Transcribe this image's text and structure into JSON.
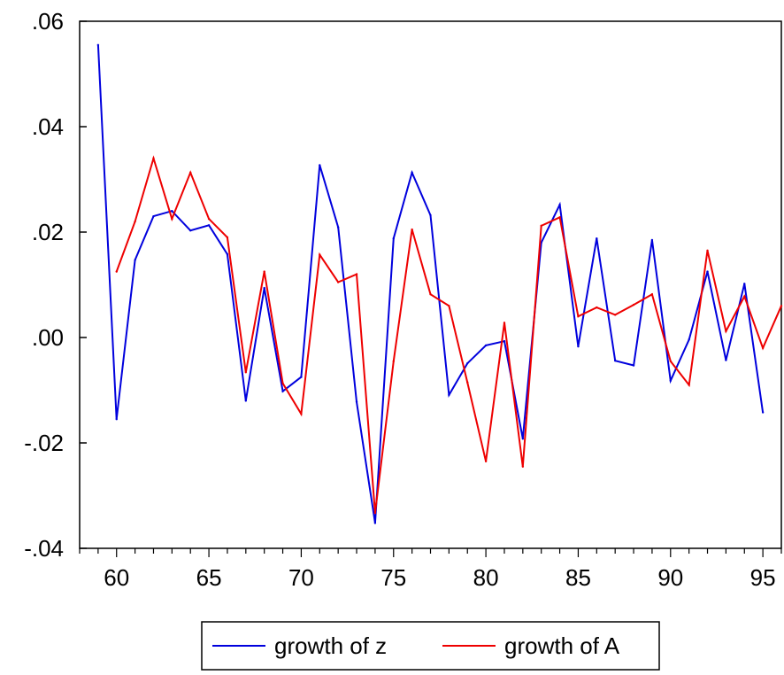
{
  "chart_data": {
    "type": "line",
    "title": "",
    "xlabel": "",
    "ylabel": "",
    "xlim": [
      58,
      96
    ],
    "ylim": [
      -0.04,
      0.06
    ],
    "x_ticks": [
      60,
      65,
      70,
      75,
      80,
      85,
      90,
      95
    ],
    "x_tick_labels": [
      "60",
      "65",
      "70",
      "75",
      "80",
      "85",
      "90",
      "95"
    ],
    "y_ticks": [
      -0.04,
      -0.02,
      0.0,
      0.02,
      0.04,
      0.06
    ],
    "y_tick_labels": [
      "-.04",
      "-.02",
      ".00",
      ".02",
      ".04",
      ".06"
    ],
    "grid": false,
    "legend_position": "bottom-center",
    "series": [
      {
        "name": "growth of z",
        "color": "#0000dd",
        "x": [
          59,
          60,
          61,
          62,
          63,
          64,
          65,
          66,
          67,
          68,
          69,
          70,
          71,
          72,
          73,
          74,
          75,
          76,
          77,
          78,
          79,
          80,
          81,
          82,
          83,
          84,
          85,
          86,
          87,
          88,
          89,
          90,
          91,
          92,
          93,
          94,
          95
        ],
        "values": [
          0.0555,
          -0.0155,
          0.0147,
          0.023,
          0.024,
          0.0203,
          0.0213,
          0.0158,
          -0.012,
          0.0094,
          -0.0102,
          -0.0075,
          0.0327,
          0.0209,
          -0.0122,
          -0.0352,
          0.0188,
          0.0313,
          0.0232,
          -0.0109,
          -0.0049,
          -0.0015,
          -0.0007,
          -0.0192,
          0.018,
          0.0252,
          -0.0017,
          0.0188,
          -0.0044,
          -0.0053,
          0.0185,
          -0.0082,
          -0.0004,
          0.0125,
          -0.0043,
          0.0102,
          -0.0142
        ]
      },
      {
        "name": "growth of A",
        "color": "#ee0000",
        "x": [
          60,
          61,
          62,
          63,
          64,
          65,
          66,
          67,
          68,
          69,
          70,
          71,
          72,
          73,
          74,
          75,
          76,
          77,
          78,
          79,
          80,
          81,
          82,
          83,
          84,
          85,
          86,
          87,
          88,
          89,
          90,
          91,
          92,
          93,
          94,
          95,
          96
        ],
        "values": [
          0.0125,
          0.022,
          0.034,
          0.0225,
          0.0313,
          0.0225,
          0.019,
          -0.0066,
          0.0125,
          -0.0087,
          -0.0145,
          0.0157,
          0.0105,
          0.012,
          -0.0333,
          -0.0045,
          0.0205,
          0.0082,
          0.006,
          -0.0085,
          -0.0235,
          0.0028,
          -0.0245,
          0.0212,
          0.0228,
          0.004,
          0.0057,
          0.0043,
          0.0062,
          0.0082,
          -0.0045,
          -0.009,
          0.0165,
          0.0012,
          0.0078,
          -0.002,
          0.006
        ]
      }
    ]
  }
}
